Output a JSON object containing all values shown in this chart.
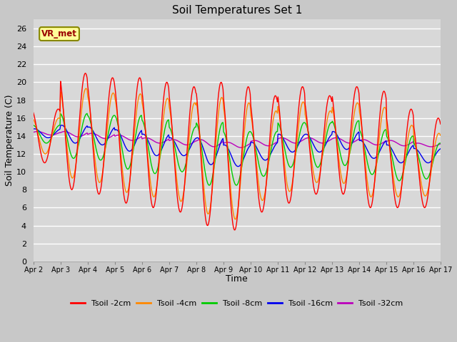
{
  "title": "Soil Temperatures Set 1",
  "xlabel": "Time",
  "ylabel": "Soil Temperature (C)",
  "background_color": "#c8c8c8",
  "plot_bg_color": "#d8d8d8",
  "ylim": [
    0,
    27
  ],
  "yticks": [
    0,
    2,
    4,
    6,
    8,
    10,
    12,
    14,
    16,
    18,
    20,
    22,
    24,
    26
  ],
  "x_labels": [
    "Apr 2",
    "Apr 3",
    "Apr 4",
    "Apr 5",
    "Apr 6",
    "Apr 7",
    "Apr 8",
    "Apr 9",
    "Apr 10",
    "Apr 11",
    "Apr 12",
    "Apr 13",
    "Apr 14",
    "Apr 15",
    "Apr 16",
    "Apr 17"
  ],
  "legend_entries": [
    "Tsoil -2cm",
    "Tsoil -4cm",
    "Tsoil -8cm",
    "Tsoil -16cm",
    "Tsoil -32cm"
  ],
  "colors": {
    "Tsoil -2cm": "#ff0000",
    "Tsoil -4cm": "#ff8800",
    "Tsoil -8cm": "#00cc00",
    "Tsoil -16cm": "#0000ee",
    "Tsoil -32cm": "#bb00bb"
  },
  "annotation_text": "VR_met",
  "n_days": 15,
  "pts_per_day": 48,
  "amplitude_2cm": [
    3.0,
    6.5,
    6.5,
    7.0,
    7.0,
    7.0,
    8.0,
    8.0,
    6.5,
    6.5,
    5.5,
    6.0,
    6.5,
    5.5,
    5.0
  ],
  "mid_2cm": [
    14.0,
    14.5,
    14.0,
    13.5,
    13.0,
    12.5,
    12.0,
    11.5,
    12.0,
    13.0,
    13.0,
    13.5,
    12.5,
    11.5,
    11.0
  ],
  "amplitude_4cm": [
    2.0,
    5.0,
    5.0,
    5.5,
    5.5,
    5.5,
    6.5,
    6.5,
    5.0,
    5.0,
    4.0,
    4.5,
    5.0,
    4.0,
    3.5
  ],
  "mid_4cm": [
    14.0,
    14.3,
    13.8,
    13.2,
    12.7,
    12.2,
    11.8,
    11.2,
    11.8,
    12.8,
    12.8,
    13.2,
    12.2,
    11.2,
    10.8
  ],
  "amplitude_8cm": [
    1.0,
    2.5,
    2.5,
    3.0,
    3.0,
    2.5,
    3.5,
    3.0,
    2.5,
    2.5,
    2.5,
    2.5,
    2.5,
    2.5,
    2.0
  ],
  "mid_8cm": [
    14.2,
    14.0,
    13.8,
    13.3,
    12.8,
    12.5,
    12.0,
    11.5,
    12.0,
    13.0,
    13.0,
    13.2,
    12.2,
    11.5,
    11.2
  ],
  "amplitude_16cm": [
    0.5,
    1.0,
    1.0,
    1.2,
    1.2,
    1.0,
    1.5,
    1.2,
    1.0,
    1.0,
    1.0,
    1.0,
    1.0,
    1.0,
    0.8
  ],
  "mid_16cm": [
    14.3,
    14.2,
    14.0,
    13.5,
    13.0,
    12.8,
    12.3,
    11.8,
    12.3,
    13.2,
    13.2,
    13.5,
    12.5,
    12.0,
    11.8
  ],
  "amplitude_32cm": [
    0.2,
    0.3,
    0.3,
    0.3,
    0.3,
    0.3,
    0.4,
    0.3,
    0.3,
    0.3,
    0.3,
    0.3,
    0.3,
    0.3,
    0.2
  ],
  "mid_32cm": [
    14.3,
    14.2,
    14.0,
    13.8,
    13.5,
    13.3,
    13.2,
    13.0,
    13.2,
    13.5,
    13.5,
    13.5,
    13.3,
    13.2,
    13.0
  ]
}
